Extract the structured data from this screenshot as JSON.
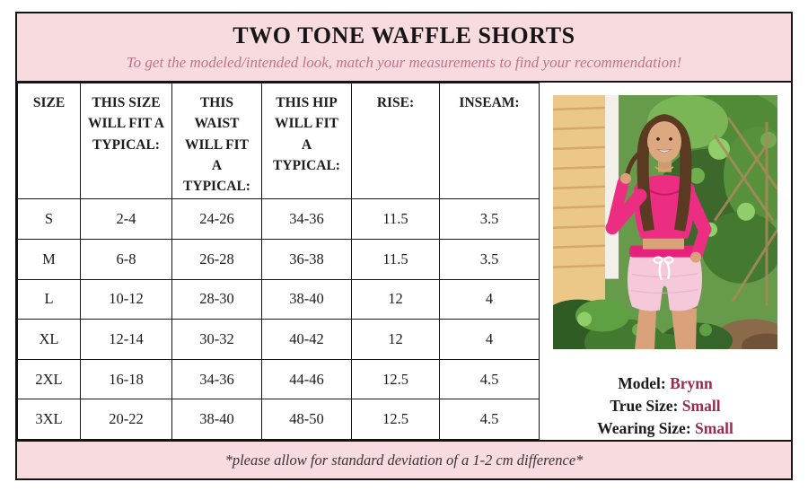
{
  "header": {
    "title": "TWO TONE WAFFLE SHORTS",
    "subtitle": "To get the modeled/intended look, match your measurements to find your recommendation!"
  },
  "table": {
    "columns": [
      "SIZE",
      "THIS SIZE WILL FIT A TYPICAL:",
      "THIS WAIST WILL FIT A TYPICAL:",
      "THIS HIP WILL FIT A TYPICAL:",
      "RISE:",
      "INSEAM:"
    ],
    "rows": [
      [
        "S",
        "2-4",
        "24-26",
        "34-36",
        "11.5",
        "3.5"
      ],
      [
        "M",
        "6-8",
        "26-28",
        "36-38",
        "11.5",
        "3.5"
      ],
      [
        "L",
        "10-12",
        "28-30",
        "38-40",
        "12",
        "4"
      ],
      [
        "XL",
        "12-14",
        "30-32",
        "40-42",
        "12",
        "4"
      ],
      [
        "2XL",
        "16-18",
        "34-36",
        "44-46",
        "12.5",
        "4.5"
      ],
      [
        "3XL",
        "20-22",
        "38-40",
        "48-50",
        "12.5",
        "4.5"
      ]
    ]
  },
  "model": {
    "lines": [
      {
        "label": "Model:",
        "value": "Brynn"
      },
      {
        "label": "True Size:",
        "value": "Small"
      },
      {
        "label": "Wearing Size:",
        "value": "Small"
      }
    ]
  },
  "footer": {
    "note": "*please allow for standard deviation of a 1-2 cm difference*"
  },
  "colors": {
    "banner_pink": "#f8dbde",
    "subtitle_pink": "#c0748a",
    "accent_maroon": "#9b2a52",
    "border_black": "#141414",
    "top_hot_pink": "#ec2e83",
    "shorts_light_pink": "#f5c9d9"
  }
}
